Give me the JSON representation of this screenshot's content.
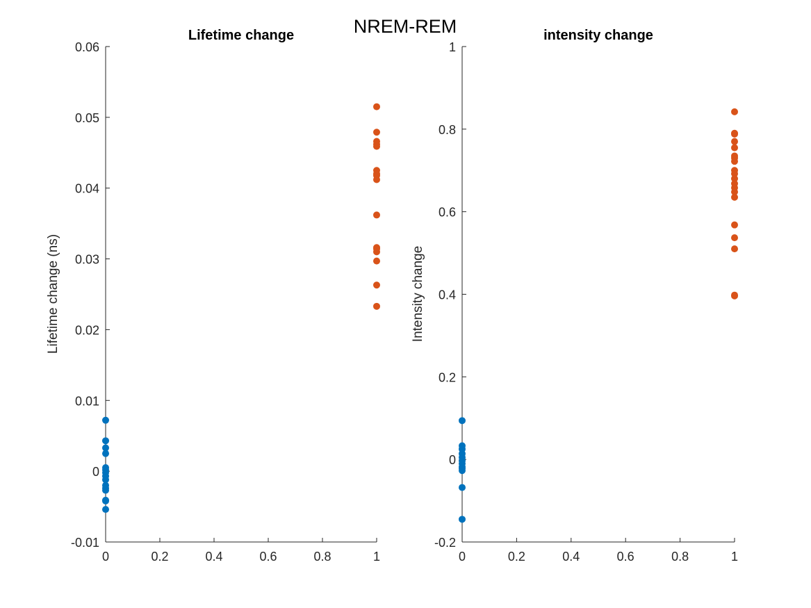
{
  "figure": {
    "suptitle": "NREM-REM"
  },
  "chart_data": [
    {
      "type": "scatter",
      "title": "Lifetime change",
      "xlabel": "",
      "ylabel": "Lifetime change (ns)",
      "xlim": [
        0,
        1
      ],
      "ylim": [
        -0.01,
        0.06
      ],
      "xticks": [
        0,
        0.2,
        0.4,
        0.6,
        0.8,
        1
      ],
      "xtick_labels": [
        "0",
        "0.2",
        "0.4",
        "0.6",
        "0.8",
        "1"
      ],
      "yticks": [
        -0.01,
        0,
        0.01,
        0.02,
        0.03,
        0.04,
        0.05,
        0.06
      ],
      "ytick_labels": [
        "-0.01",
        "0",
        "0.01",
        "0.02",
        "0.03",
        "0.04",
        "0.05",
        "0.06"
      ],
      "grid": false,
      "series": [
        {
          "color": "#0072BD",
          "x": [
            0,
            0,
            0,
            0,
            0,
            0,
            0,
            0,
            0,
            0,
            0,
            0,
            0,
            0,
            0
          ],
          "y": [
            0.0072,
            0.0043,
            0.0033,
            0.0025,
            0.0005,
            0.0002,
            -0.0002,
            -0.0007,
            -0.0012,
            -0.002,
            -0.0024,
            -0.0027,
            -0.0041,
            -0.0042,
            -0.0054
          ]
        },
        {
          "color": "#D95319",
          "x": [
            1,
            1,
            1,
            1,
            1,
            1,
            1,
            1,
            1,
            1,
            1,
            1,
            1,
            1,
            1,
            1
          ],
          "y": [
            0.0515,
            0.0479,
            0.0466,
            0.0462,
            0.0459,
            0.0425,
            0.0418,
            0.0412,
            0.0362,
            0.0316,
            0.0314,
            0.031,
            0.0297,
            0.0263,
            0.0233,
            0.042
          ]
        }
      ]
    },
    {
      "type": "scatter",
      "title": "intensity change",
      "xlabel": "",
      "ylabel": "Intensity change",
      "xlim": [
        0,
        1
      ],
      "ylim": [
        -0.2,
        1
      ],
      "xticks": [
        0,
        0.2,
        0.4,
        0.6,
        0.8,
        1
      ],
      "xtick_labels": [
        "0",
        "0.2",
        "0.4",
        "0.6",
        "0.8",
        "1"
      ],
      "yticks": [
        -0.2,
        0,
        0.2,
        0.4,
        0.6,
        0.8,
        1
      ],
      "ytick_labels": [
        "-0.2",
        "0",
        "0.2",
        "0.4",
        "0.6",
        "0.8",
        "1"
      ],
      "grid": false,
      "series": [
        {
          "color": "#0072BD",
          "x": [
            0,
            0,
            0,
            0,
            0,
            0,
            0,
            0,
            0,
            0,
            0,
            0
          ],
          "y": [
            0.094,
            0.033,
            0.025,
            0.014,
            0.005,
            -0.003,
            -0.01,
            -0.018,
            -0.022,
            -0.027,
            -0.068,
            -0.145
          ]
        },
        {
          "color": "#D95319",
          "x": [
            1,
            1,
            1,
            1,
            1,
            1,
            1,
            1,
            1,
            1,
            1,
            1,
            1,
            1,
            1,
            1,
            1,
            1,
            1,
            1
          ],
          "y": [
            0.842,
            0.79,
            0.788,
            0.77,
            0.755,
            0.735,
            0.73,
            0.722,
            0.7,
            0.692,
            0.68,
            0.668,
            0.658,
            0.648,
            0.635,
            0.568,
            0.537,
            0.51,
            0.398,
            0.396
          ]
        }
      ]
    }
  ]
}
